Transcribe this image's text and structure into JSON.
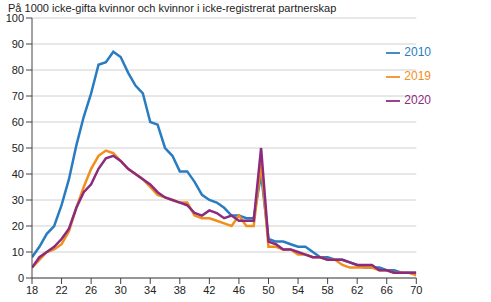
{
  "chart_data": {
    "type": "line",
    "title": "På 1000 icke-gifta kvinnor och kvinnor i icke-registrerat partnerskap",
    "x": [
      18,
      19,
      20,
      21,
      22,
      23,
      24,
      25,
      26,
      27,
      28,
      29,
      30,
      31,
      32,
      33,
      34,
      35,
      36,
      37,
      38,
      39,
      40,
      41,
      42,
      43,
      44,
      45,
      46,
      47,
      48,
      49,
      50,
      51,
      52,
      53,
      54,
      55,
      56,
      57,
      58,
      59,
      60,
      61,
      62,
      63,
      64,
      65,
      66,
      67,
      68,
      69,
      70
    ],
    "series": [
      {
        "name": "2010",
        "color": "#2a7cc0",
        "values": [
          8,
          12,
          17,
          20,
          28,
          38,
          51,
          62,
          71,
          82,
          83,
          87,
          85,
          79,
          74,
          71,
          60,
          59,
          50,
          47,
          41,
          41,
          37,
          32,
          30,
          29,
          27,
          24,
          24,
          23,
          23,
          40,
          15,
          14,
          14,
          13,
          12,
          12,
          10,
          8,
          8,
          7,
          7,
          6,
          5,
          4,
          4,
          4,
          3,
          3,
          2,
          2,
          2
        ]
      },
      {
        "name": "2019",
        "color": "#f28e1c",
        "values": [
          4,
          7,
          10,
          11,
          13,
          18,
          27,
          35,
          42,
          47,
          49,
          48,
          45,
          42,
          40,
          38,
          35,
          32,
          31,
          30,
          29,
          29,
          24,
          23,
          23,
          22,
          21,
          20,
          24,
          20,
          20,
          44,
          12,
          12,
          11,
          11,
          9,
          9,
          8,
          8,
          7,
          7,
          5,
          4,
          4,
          4,
          4,
          3,
          3,
          2,
          2,
          2,
          1
        ]
      },
      {
        "name": "2020",
        "color": "#8c2a7e",
        "values": [
          4,
          8,
          10,
          12,
          15,
          19,
          27,
          33,
          36,
          42,
          46,
          47,
          45,
          42,
          40,
          38,
          36,
          33,
          31,
          30,
          29,
          28,
          25,
          24,
          26,
          25,
          23,
          24,
          22,
          22,
          22,
          50,
          14,
          13,
          11,
          11,
          10,
          9,
          8,
          8,
          7,
          7,
          7,
          6,
          5,
          5,
          5,
          3,
          3,
          2,
          2,
          2,
          2
        ]
      }
    ],
    "xlim": [
      18,
      70
    ],
    "xticks": [
      18,
      22,
      26,
      30,
      34,
      38,
      42,
      46,
      50,
      54,
      58,
      62,
      66,
      70
    ],
    "ylim": [
      0,
      100
    ],
    "yticks": [
      0,
      10,
      20,
      30,
      40,
      50,
      60,
      70,
      80,
      90,
      100
    ],
    "grid": true,
    "legend": "right"
  }
}
